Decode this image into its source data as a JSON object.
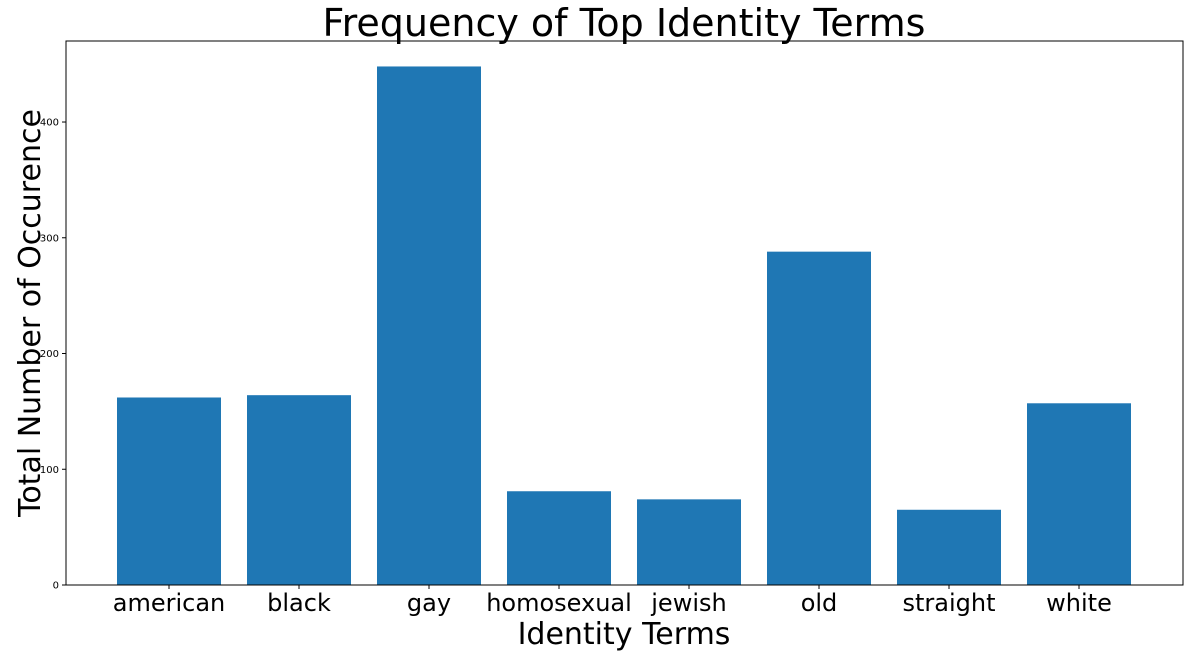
{
  "chart_data": {
    "type": "bar",
    "title": "Frequency of Top Identity Terms",
    "xlabel": "Identity Terms",
    "ylabel": "Total Number of Occurence",
    "categories": [
      "american",
      "black",
      "gay",
      "homosexual",
      "jewish",
      "old",
      "straight",
      "white"
    ],
    "values": [
      162,
      164,
      448,
      81,
      74,
      288,
      65,
      157
    ],
    "ylim": [
      0,
      470
    ],
    "yticks": [
      0,
      100,
      200,
      300,
      400
    ],
    "bar_color": "#1f77b4",
    "grid": false,
    "legend": "none"
  }
}
